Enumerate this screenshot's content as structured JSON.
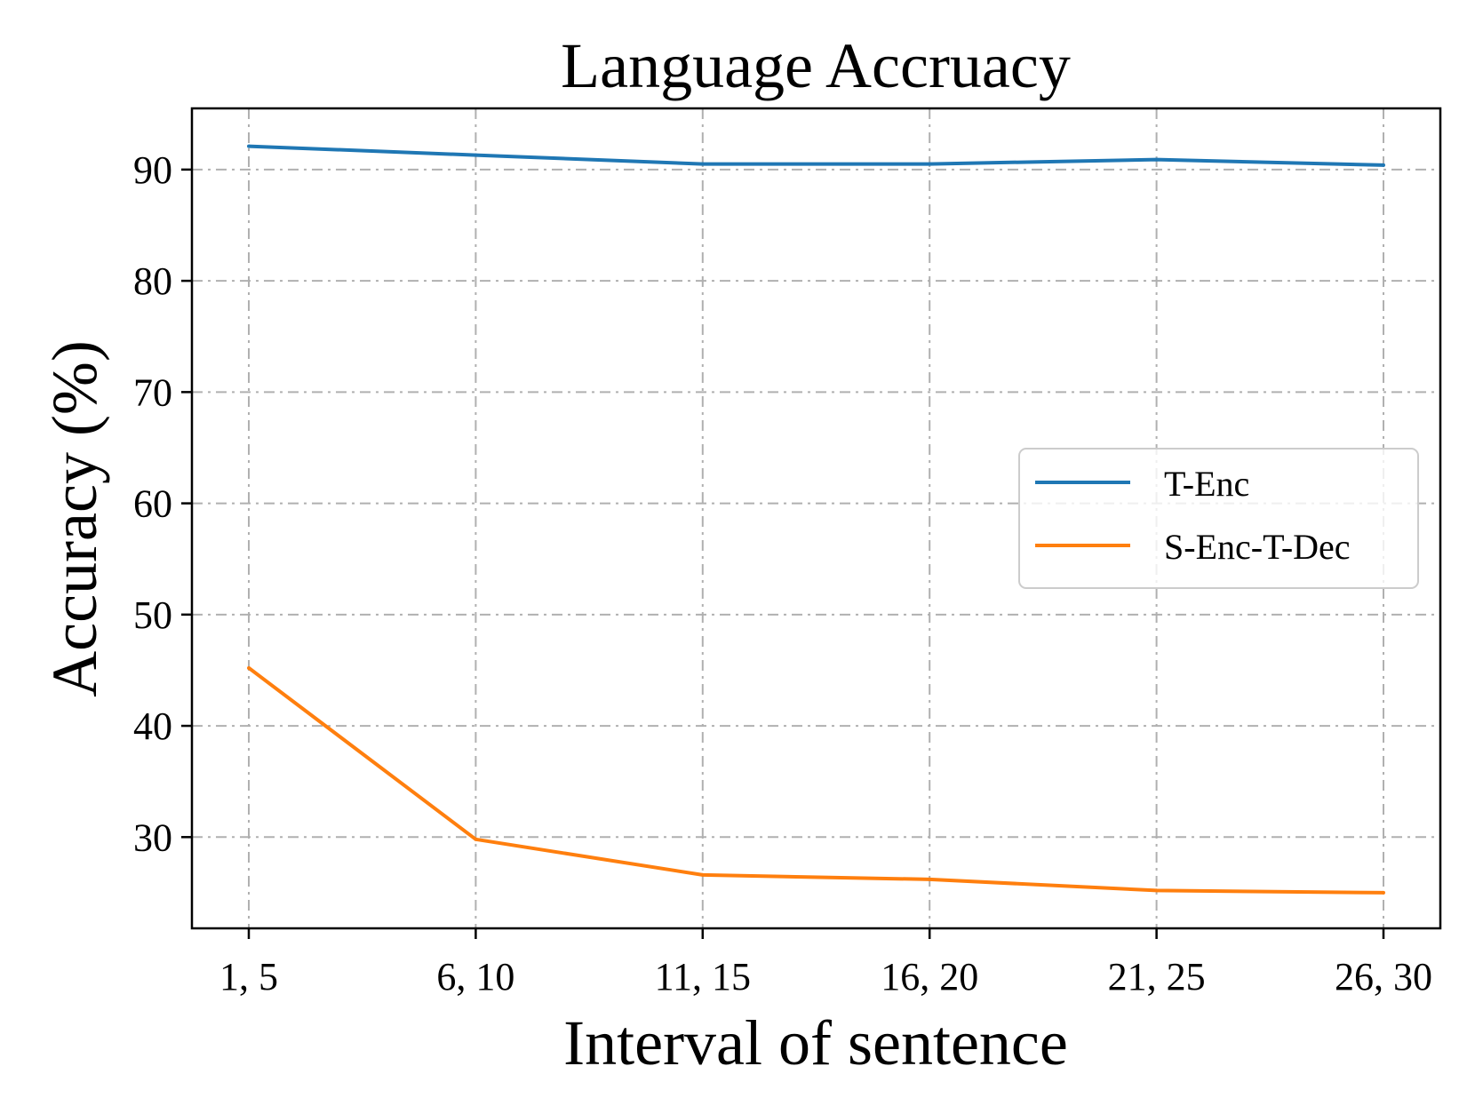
{
  "chart_data": {
    "type": "line",
    "title": "Language Accruacy",
    "xlabel": "Interval of sentence",
    "ylabel": "Accuracy (%)",
    "categories": [
      "1, 5",
      "6, 10",
      "11, 15",
      "16, 20",
      "21, 25",
      "26, 30"
    ],
    "yticks": [
      30,
      40,
      50,
      60,
      70,
      80,
      90
    ],
    "ylim": [
      21.8,
      95.5
    ],
    "grid": true,
    "legend_position": "center-right",
    "series": [
      {
        "name": "T-Enc",
        "color": "#1f77b4",
        "values": [
          92.1,
          91.3,
          90.5,
          90.5,
          90.9,
          90.4
        ]
      },
      {
        "name": "S-Enc-T-Dec",
        "color": "#ff7f0e",
        "values": [
          45.2,
          29.8,
          26.6,
          26.2,
          25.2,
          25.0
        ]
      }
    ]
  }
}
